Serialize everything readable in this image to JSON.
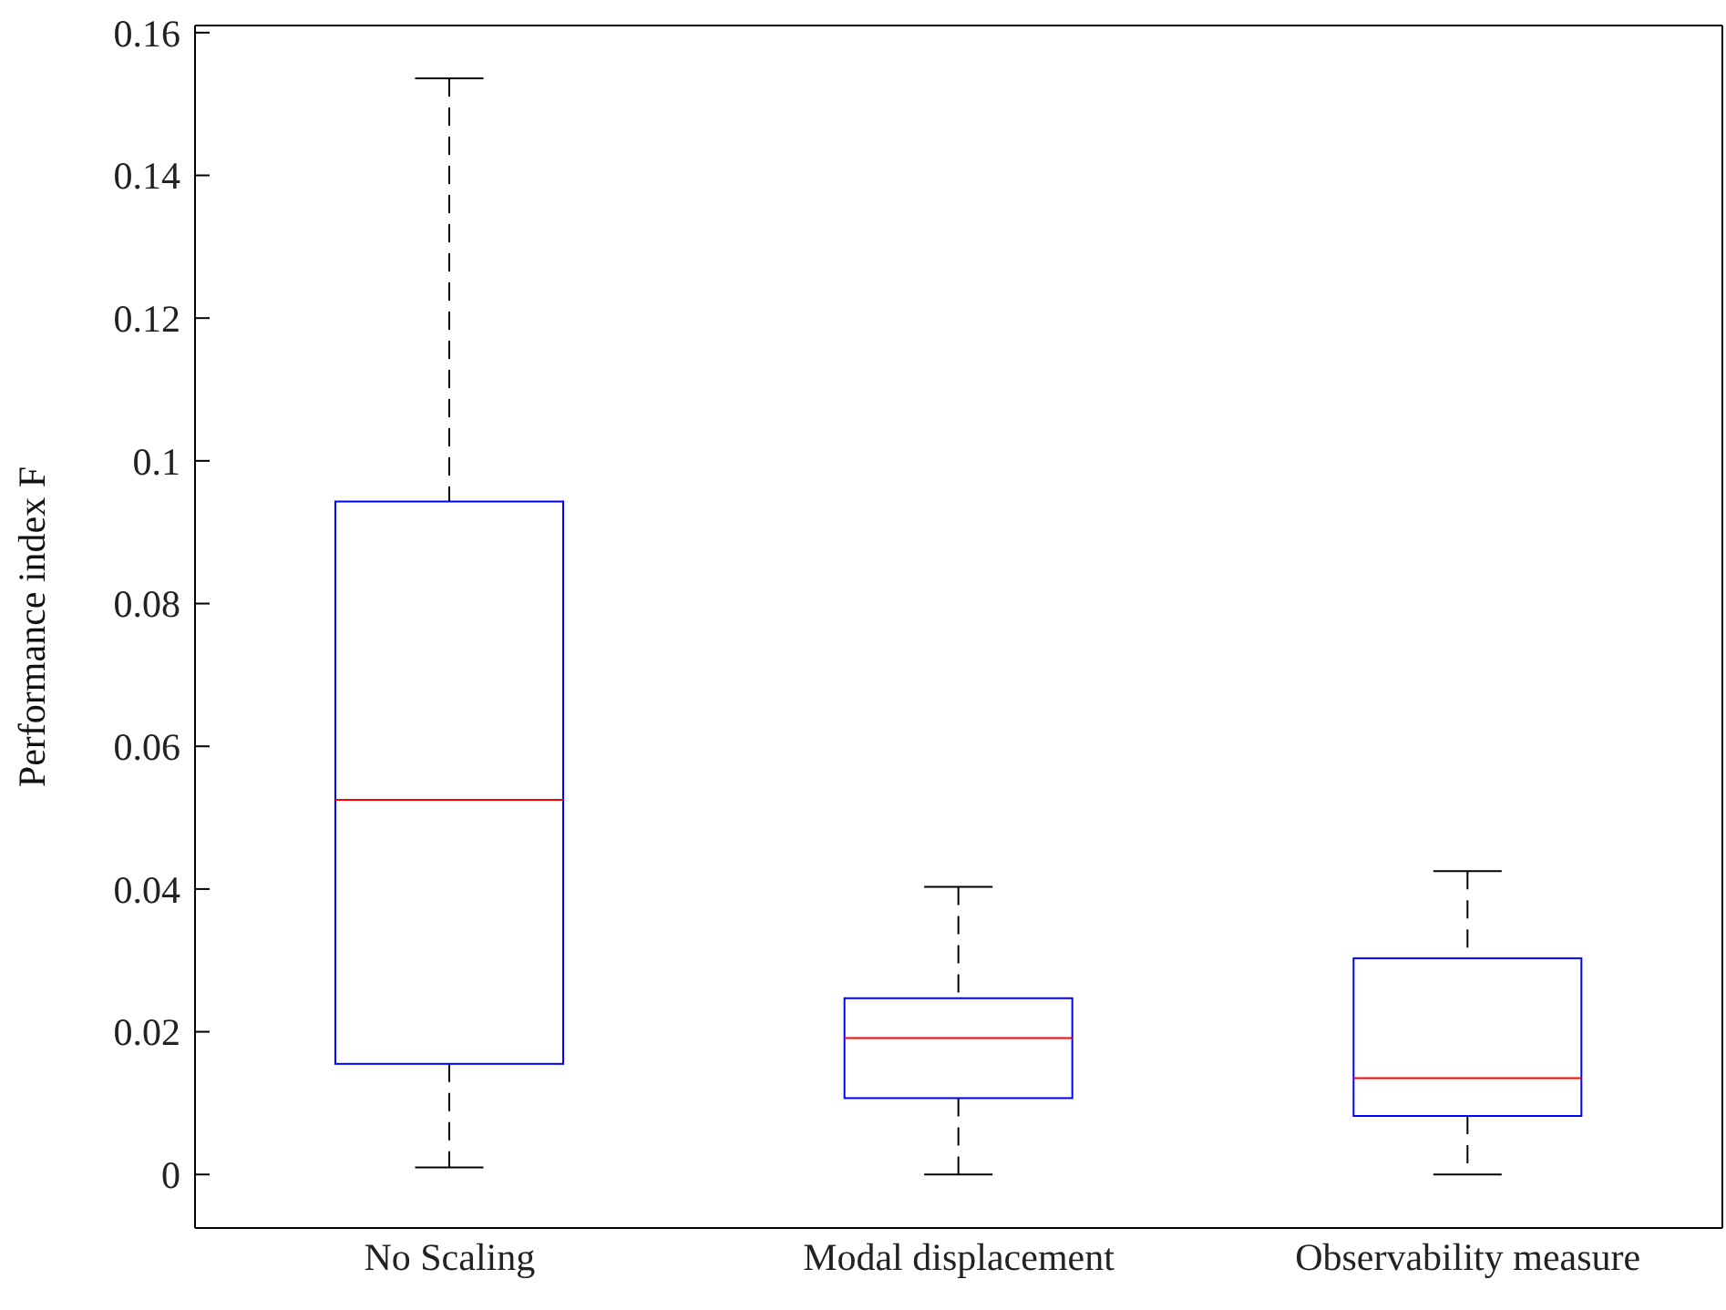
{
  "chart_data": {
    "type": "box",
    "ylabel": "Performance index F",
    "categories": [
      "No Scaling",
      "Modal displacement",
      "Observability measure"
    ],
    "series": [
      {
        "color": "#0000ff",
        "boxes": [
          {
            "low": 0.001,
            "q1": 0.0155,
            "median": 0.0525,
            "q3": 0.0943,
            "high": 0.1536
          },
          {
            "low": 0,
            "q1": 0.0107,
            "median": 0.0191,
            "q3": 0.0247,
            "high": 0.0403
          },
          {
            "low": 0,
            "q1": 0.0082,
            "median": 0.0135,
            "q3": 0.0303,
            "high": 0.0425
          }
        ]
      }
    ],
    "ylim": [
      -0.0075,
      0.161
    ],
    "yticks": [
      0,
      0.02,
      0.04,
      0.06,
      0.08,
      0.1,
      0.12,
      0.14,
      0.16
    ],
    "grid": false,
    "legend": false
  }
}
